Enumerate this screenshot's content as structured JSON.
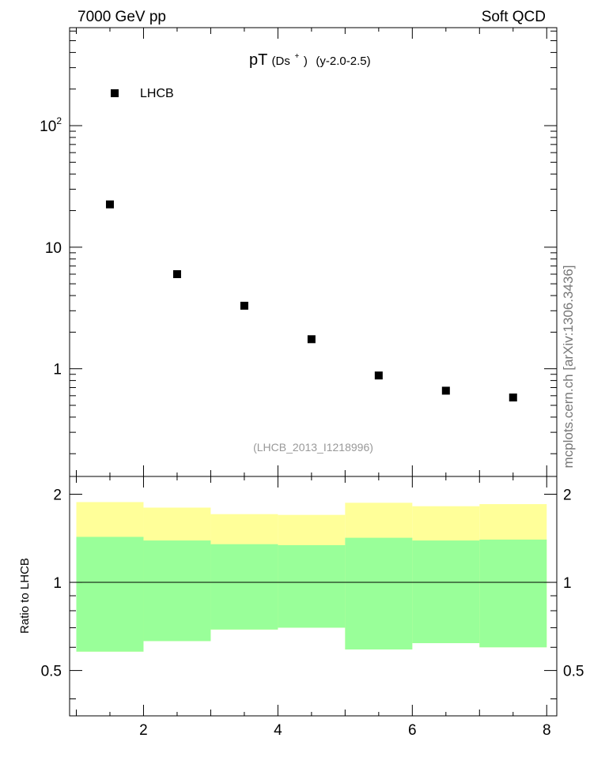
{
  "header": {
    "left": "7000 GeV pp",
    "right": "Soft QCD"
  },
  "side_label": "mcplots.cern.ch [arXiv:1306.3436]",
  "chart_data": [
    {
      "type": "scatter",
      "title_main": "pT",
      "title_particle": "(Ds",
      "title_charge": "+",
      "title_close": ")",
      "title_cut": "(y-2.0-2.5)",
      "analysis_label": "(LHCB_2013_I1218996)",
      "yscale": "log",
      "xlim": [
        0.9,
        8.15
      ],
      "ylim": [
        0.13,
        640
      ],
      "legend": {
        "position": "top-left",
        "entries": [
          "LHCB"
        ]
      },
      "ytick_labels": [
        {
          "value": 100,
          "base": "10",
          "exp": "2"
        },
        {
          "value": 10,
          "text": "10"
        },
        {
          "value": 1,
          "text": "1"
        }
      ],
      "series": [
        {
          "name": "LHCB",
          "x": [
            1.5,
            2.5,
            3.5,
            4.5,
            5.5,
            6.5,
            7.5
          ],
          "y": [
            22.5,
            6.0,
            3.3,
            1.75,
            0.88,
            0.66,
            0.58
          ]
        }
      ]
    },
    {
      "type": "area",
      "ylabel": "Ratio to LHCB",
      "yscale": "log",
      "xlim": [
        0.9,
        8.15
      ],
      "ylim": [
        0.35,
        2.3
      ],
      "reference_line": 1,
      "xticks": [
        2,
        4,
        6,
        8
      ],
      "xtick_labels": [
        "2",
        "4",
        "6",
        "8"
      ],
      "yticks": [
        0.5,
        1,
        2
      ],
      "ytick_labels": [
        "0.5",
        "1",
        "2"
      ],
      "bins": [
        [
          1,
          2
        ],
        [
          2,
          3
        ],
        [
          3,
          4
        ],
        [
          4,
          5
        ],
        [
          5,
          6
        ],
        [
          6,
          7
        ],
        [
          7,
          8
        ]
      ],
      "band_colors": {
        "outer": "#ffff99",
        "inner": "#99ff99"
      },
      "outer_band": {
        "lower": [
          0.58,
          0.63,
          0.69,
          0.7,
          0.59,
          0.62,
          0.6
        ],
        "upper": [
          1.88,
          1.8,
          1.71,
          1.7,
          1.87,
          1.82,
          1.85
        ]
      },
      "inner_band": {
        "lower": [
          0.58,
          0.63,
          0.69,
          0.7,
          0.59,
          0.62,
          0.6
        ],
        "upper": [
          1.43,
          1.39,
          1.35,
          1.34,
          1.42,
          1.39,
          1.4
        ]
      }
    }
  ]
}
